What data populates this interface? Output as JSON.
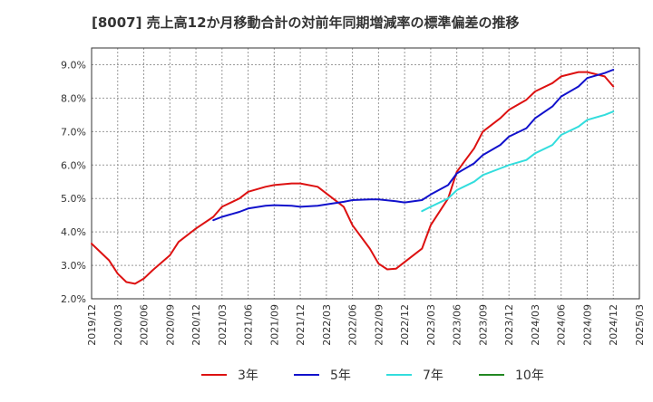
{
  "chart_data": {
    "type": "line",
    "title": "[8007]  売上高12か月移動合計の対前年同期増減率の標準偏差の推移",
    "xlabel": "",
    "ylabel": "",
    "ylim": [
      2.0,
      9.5
    ],
    "y_ticks": [
      "2.0%",
      "3.0%",
      "4.0%",
      "5.0%",
      "6.0%",
      "7.0%",
      "8.0%",
      "9.0%"
    ],
    "x_ticks": [
      "2019/12",
      "2020/03",
      "2020/06",
      "2020/09",
      "2020/12",
      "2021/03",
      "2021/06",
      "2021/09",
      "2021/12",
      "2022/03",
      "2022/06",
      "2022/09",
      "2022/12",
      "2023/03",
      "2023/06",
      "2023/09",
      "2023/12",
      "2024/03",
      "2024/06",
      "2024/09",
      "2024/12",
      "2025/03"
    ],
    "grid": true,
    "legend_position": "bottom",
    "series": [
      {
        "name": "3年",
        "color": "#dd1111",
        "points": [
          [
            "2019/12",
            3.65
          ],
          [
            "2020/02",
            3.15
          ],
          [
            "2020/03",
            2.75
          ],
          [
            "2020/04",
            2.5
          ],
          [
            "2020/05",
            2.45
          ],
          [
            "2020/06",
            2.6
          ],
          [
            "2020/07",
            2.85
          ],
          [
            "2020/09",
            3.3
          ],
          [
            "2020/10",
            3.7
          ],
          [
            "2020/12",
            4.1
          ],
          [
            "2021/02",
            4.45
          ],
          [
            "2021/03",
            4.75
          ],
          [
            "2021/05",
            5.0
          ],
          [
            "2021/06",
            5.2
          ],
          [
            "2021/08",
            5.35
          ],
          [
            "2021/09",
            5.4
          ],
          [
            "2021/11",
            5.45
          ],
          [
            "2021/12",
            5.45
          ],
          [
            "2022/02",
            5.35
          ],
          [
            "2022/03",
            5.15
          ],
          [
            "2022/05",
            4.75
          ],
          [
            "2022/06",
            4.2
          ],
          [
            "2022/08",
            3.5
          ],
          [
            "2022/09",
            3.05
          ],
          [
            "2022/10",
            2.88
          ],
          [
            "2022/11",
            2.9
          ],
          [
            "2022/12",
            3.1
          ],
          [
            "2023/02",
            3.5
          ],
          [
            "2023/03",
            4.2
          ],
          [
            "2023/05",
            5.0
          ],
          [
            "2023/06",
            5.8
          ],
          [
            "2023/08",
            6.5
          ],
          [
            "2023/09",
            7.0
          ],
          [
            "2023/11",
            7.4
          ],
          [
            "2023/12",
            7.65
          ],
          [
            "2024/02",
            7.95
          ],
          [
            "2024/03",
            8.2
          ],
          [
            "2024/05",
            8.45
          ],
          [
            "2024/06",
            8.65
          ],
          [
            "2024/08",
            8.78
          ],
          [
            "2024/09",
            8.78
          ],
          [
            "2024/11",
            8.65
          ],
          [
            "2024/12",
            8.35
          ]
        ]
      },
      {
        "name": "5年",
        "color": "#1111cc",
        "points": [
          [
            "2021/02",
            4.35
          ],
          [
            "2021/03",
            4.45
          ],
          [
            "2021/05",
            4.6
          ],
          [
            "2021/06",
            4.7
          ],
          [
            "2021/08",
            4.78
          ],
          [
            "2021/09",
            4.8
          ],
          [
            "2021/11",
            4.78
          ],
          [
            "2021/12",
            4.75
          ],
          [
            "2022/02",
            4.78
          ],
          [
            "2022/03",
            4.82
          ],
          [
            "2022/05",
            4.9
          ],
          [
            "2022/06",
            4.95
          ],
          [
            "2022/08",
            4.97
          ],
          [
            "2022/09",
            4.97
          ],
          [
            "2022/11",
            4.92
          ],
          [
            "2022/12",
            4.88
          ],
          [
            "2023/02",
            4.95
          ],
          [
            "2023/03",
            5.12
          ],
          [
            "2023/05",
            5.4
          ],
          [
            "2023/06",
            5.75
          ],
          [
            "2023/08",
            6.05
          ],
          [
            "2023/09",
            6.3
          ],
          [
            "2023/11",
            6.6
          ],
          [
            "2023/12",
            6.85
          ],
          [
            "2024/02",
            7.1
          ],
          [
            "2024/03",
            7.4
          ],
          [
            "2024/05",
            7.75
          ],
          [
            "2024/06",
            8.05
          ],
          [
            "2024/08",
            8.35
          ],
          [
            "2024/09",
            8.6
          ],
          [
            "2024/11",
            8.75
          ],
          [
            "2024/12",
            8.85
          ]
        ]
      },
      {
        "name": "7年",
        "color": "#33dddd",
        "points": [
          [
            "2023/02",
            4.62
          ],
          [
            "2023/03",
            4.75
          ],
          [
            "2023/05",
            5.0
          ],
          [
            "2023/06",
            5.25
          ],
          [
            "2023/08",
            5.5
          ],
          [
            "2023/09",
            5.7
          ],
          [
            "2023/11",
            5.9
          ],
          [
            "2023/12",
            6.0
          ],
          [
            "2024/02",
            6.15
          ],
          [
            "2024/03",
            6.35
          ],
          [
            "2024/05",
            6.6
          ],
          [
            "2024/06",
            6.9
          ],
          [
            "2024/08",
            7.15
          ],
          [
            "2024/09",
            7.35
          ],
          [
            "2024/11",
            7.5
          ],
          [
            "2024/12",
            7.6
          ]
        ]
      },
      {
        "name": "10年",
        "color": "#228822",
        "points": []
      }
    ]
  }
}
